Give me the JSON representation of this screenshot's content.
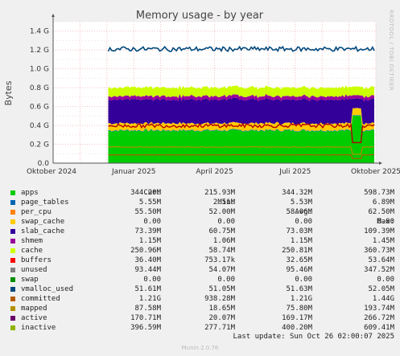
{
  "chart_data": {
    "type": "area",
    "title": "Memory usage - by year",
    "ylabel": "Bytes",
    "side_label": "RRDTOOL / TOBI OETIKER",
    "xticks": [
      "Oktober 2024",
      "Januar 2025",
      "April 2025",
      "Juli 2025",
      "Oktober 2025"
    ],
    "yticks": [
      "0.0",
      "0.2 G",
      "0.4 G",
      "0.6 G",
      "0.8 G",
      "1.0 G",
      "1.2 G",
      "1.4 G"
    ],
    "ylim": [
      0,
      1.5
    ],
    "grid": true,
    "x_months": [
      "2024-10",
      "2024-11",
      "2024-12",
      "2025-01",
      "2025-02",
      "2025-03",
      "2025-04",
      "2025-05",
      "2025-06",
      "2025-07",
      "2025-08",
      "2025-09",
      "2025-10"
    ],
    "data_start_month": "2024-12",
    "stacked_G": {
      "apps": 0.344,
      "page_tables": 0.006,
      "swap_cache": 0.0,
      "slab_cache": 0.073,
      "shmem": 0.001,
      "cache": 0.251,
      "buffers": 0.036,
      "unused": 0.093
    },
    "lines_G": {
      "committed": 1.21,
      "inactive": 0.397,
      "active": 0.171,
      "mapped": 0.088
    },
    "spike_month": "2025-09",
    "columns": [
      "Cur:",
      "Min:",
      "Avg:",
      "Max:"
    ],
    "legend": [
      {
        "name": "apps",
        "color": "#00cc00",
        "cur": "344.20M",
        "min": "215.93M",
        "avg": "344.32M",
        "max": "598.73M"
      },
      {
        "name": "page_tables",
        "color": "#0066b3",
        "cur": "5.55M",
        "min": "2.51M",
        "avg": "5.53M",
        "max": "6.89M"
      },
      {
        "name": "per_cpu",
        "color": "#ff8000",
        "cur": "55.50M",
        "min": "52.00M",
        "avg": "58.06M",
        "max": "62.50M"
      },
      {
        "name": "swap_cache",
        "color": "#ffcc00",
        "cur": "0.00",
        "min": "0.00",
        "avg": "0.00",
        "max": "0.00"
      },
      {
        "name": "slab_cache",
        "color": "#330099",
        "cur": "73.39M",
        "min": "60.75M",
        "avg": "73.03M",
        "max": "109.39M"
      },
      {
        "name": "shmem",
        "color": "#990099",
        "cur": "1.15M",
        "min": "1.06M",
        "avg": "1.15M",
        "max": "1.45M"
      },
      {
        "name": "cache",
        "color": "#ccff00",
        "cur": "250.96M",
        "min": "58.74M",
        "avg": "250.81M",
        "max": "360.73M"
      },
      {
        "name": "buffers",
        "color": "#ff0000",
        "cur": "36.40M",
        "min": "753.17k",
        "avg": "32.65M",
        "max": "53.64M"
      },
      {
        "name": "unused",
        "color": "#808080",
        "cur": "93.44M",
        "min": "54.07M",
        "avg": "95.46M",
        "max": "347.52M"
      },
      {
        "name": "swap",
        "color": "#008f00",
        "cur": "0.00",
        "min": "0.00",
        "avg": "0.00",
        "max": "0.00"
      },
      {
        "name": "vmalloc_used",
        "color": "#00487d",
        "cur": "51.61M",
        "min": "51.05M",
        "avg": "51.63M",
        "max": "52.05M"
      },
      {
        "name": "committed",
        "color": "#b35a00",
        "cur": "1.21G",
        "min": "938.28M",
        "avg": "1.21G",
        "max": "1.44G"
      },
      {
        "name": "mapped",
        "color": "#b38f00",
        "cur": "87.58M",
        "min": "18.65M",
        "avg": "75.80M",
        "max": "193.74M"
      },
      {
        "name": "active",
        "color": "#6b006b",
        "cur": "170.71M",
        "min": "20.07M",
        "avg": "169.17M",
        "max": "266.72M"
      },
      {
        "name": "inactive",
        "color": "#8fb300",
        "cur": "396.59M",
        "min": "277.71M",
        "avg": "400.20M",
        "max": "609.41M"
      }
    ]
  },
  "last_update": "Last update: Sun Oct 26 02:00:07 2025",
  "footer": "Munin 2.0.76"
}
